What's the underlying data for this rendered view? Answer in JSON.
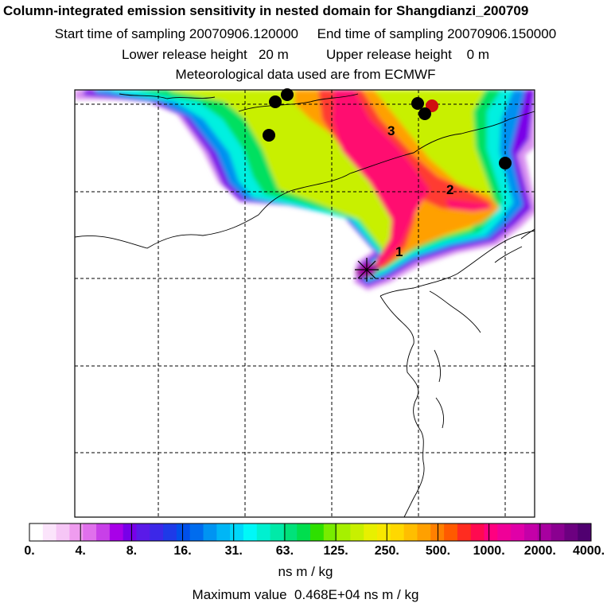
{
  "header": {
    "title": "Column-integrated emission sensitivity in nested domain for Shangdianzi_200709",
    "sampling_line": "Start time of sampling 20070906.120000     End time of sampling 20070906.150000",
    "release_line": "Lower release height   20 m          Upper release height    0 m",
    "met_line": "Meteorological data used are from ECMWF"
  },
  "map": {
    "day_labels": [
      "1",
      "2",
      "3"
    ],
    "station_marker": "receptor-star-icon",
    "source_marker": "source-dot-icon"
  },
  "colorbar": {
    "labels": [
      "0.",
      "4.",
      "8.",
      "16.",
      "31.",
      "63.",
      "125.",
      "250.",
      "500.",
      "1000.",
      "2000.",
      "4000."
    ],
    "colors": [
      "#ffffff",
      "#fbe4fb",
      "#f6c6f6",
      "#ef9cef",
      "#e070ec",
      "#c840e8",
      "#a800e8",
      "#7800e8",
      "#5a1ae8",
      "#3c28e8",
      "#1e3ae8",
      "#0050ea",
      "#006cee",
      "#0094f2",
      "#00b6f6",
      "#00d8fa",
      "#00f8f8",
      "#00f0d0",
      "#00eaa8",
      "#00e27a",
      "#00de4e",
      "#2ee000",
      "#78ec00",
      "#a6f000",
      "#c8f000",
      "#e8f000",
      "#f8e800",
      "#ffd800",
      "#ffbe00",
      "#ffa000",
      "#ff8000",
      "#ff5a00",
      "#ff2c20",
      "#ff0a50",
      "#ff0080",
      "#f00098",
      "#e000a8",
      "#c400a8",
      "#a800a0",
      "#8a0090",
      "#6c0080",
      "#500070"
    ],
    "units": "ns m / kg",
    "maximum_text": "Maximum value  0.468E+04 ns m / kg"
  }
}
